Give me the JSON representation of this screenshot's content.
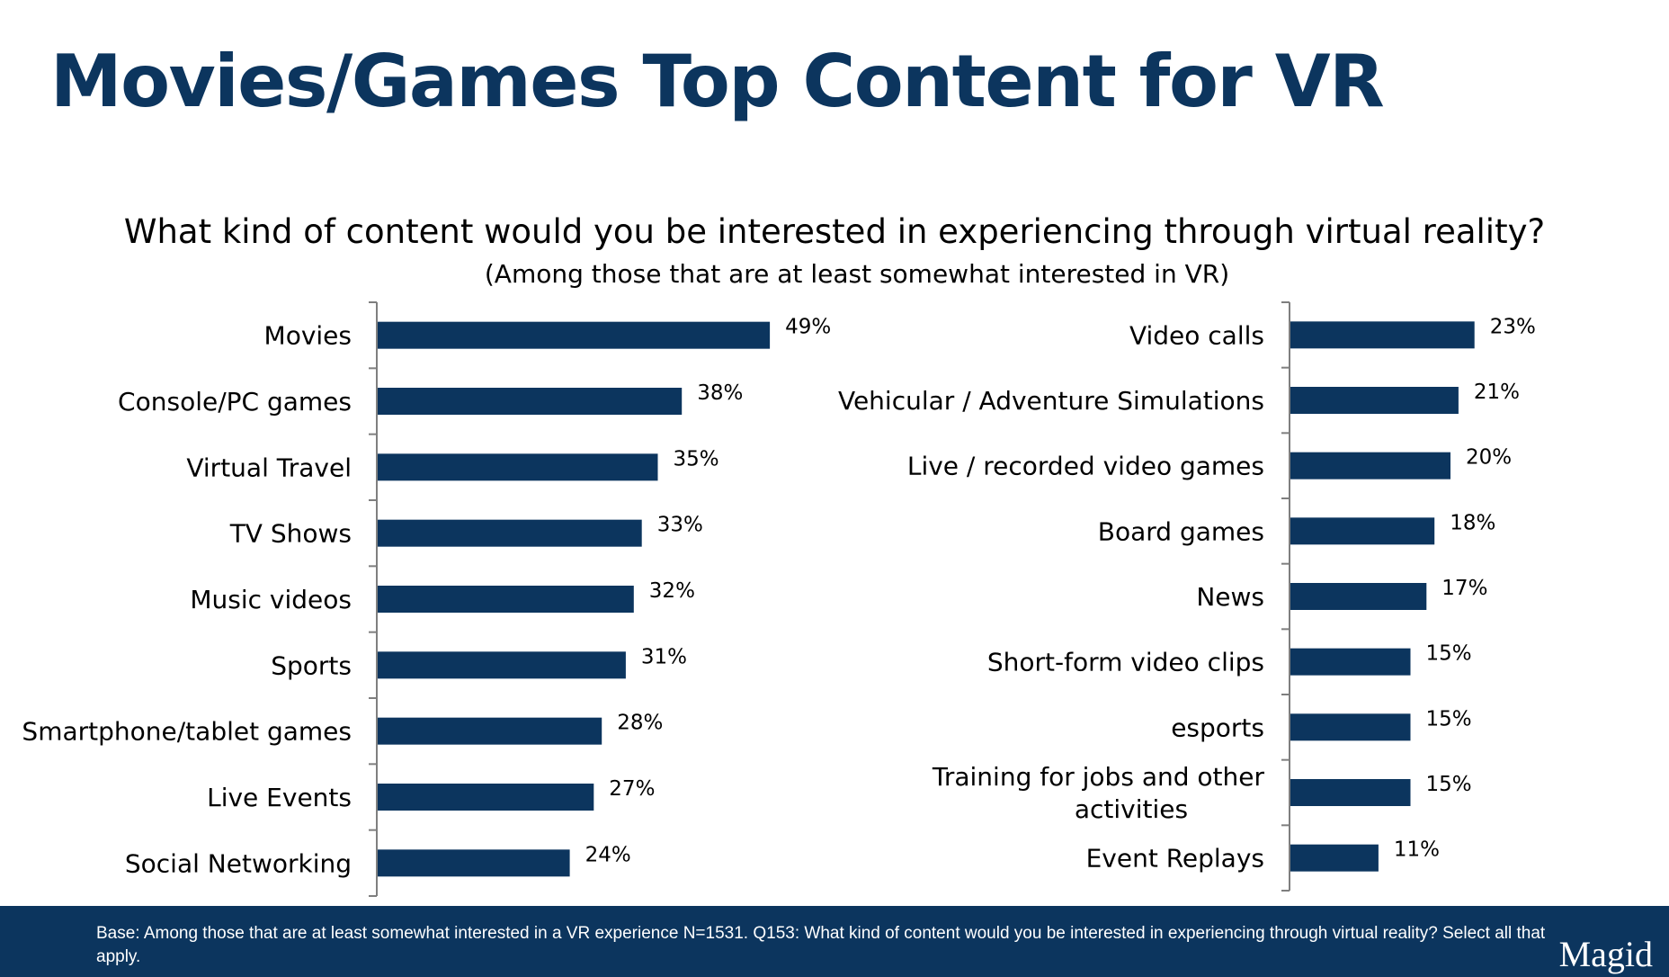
{
  "slide": {
    "title": "Movies/Games Top Content for VR",
    "question": "What kind of content would you be interested in experiencing through virtual reality?",
    "subquestion": "(Among those that are at least somewhat interested in VR)",
    "footnote": "Base: Among those that are at least somewhat interested in a VR experience N=1531. Q153: What kind of content would you be interested in experiencing through virtual reality? Select all that apply.",
    "logo": "Magid"
  },
  "colors": {
    "bar": "#0c355e",
    "footer": "#0c355e",
    "title": "#0c355e",
    "axis": "#7f7f7f"
  },
  "chart_data": [
    {
      "type": "bar",
      "orientation": "horizontal",
      "categories": [
        "Movies",
        "Console/PC games",
        "Virtual Travel",
        "TV Shows",
        "Music videos",
        "Sports",
        "Smartphone/tablet games",
        "Live Events",
        "Social Networking"
      ],
      "values": [
        49,
        38,
        35,
        33,
        32,
        31,
        28,
        27,
        24
      ],
      "labels": [
        "49%",
        "38%",
        "35%",
        "33%",
        "32%",
        "31%",
        "28%",
        "27%",
        "24%"
      ],
      "unit": "%",
      "xlim": [
        0,
        50
      ]
    },
    {
      "type": "bar",
      "orientation": "horizontal",
      "categories": [
        "Video calls",
        "Vehicular / Adventure Simulations",
        "Live / recorded video games",
        "Board games",
        "News",
        "Short-form video clips",
        "esports",
        "Training for jobs and other activities",
        "Event Replays"
      ],
      "values": [
        23,
        21,
        20,
        18,
        17,
        15,
        15,
        15,
        11
      ],
      "labels": [
        "23%",
        "21%",
        "20%",
        "18%",
        "17%",
        "15%",
        "15%",
        "15%",
        "11%"
      ],
      "unit": "%",
      "xlim": [
        0,
        50
      ]
    }
  ]
}
